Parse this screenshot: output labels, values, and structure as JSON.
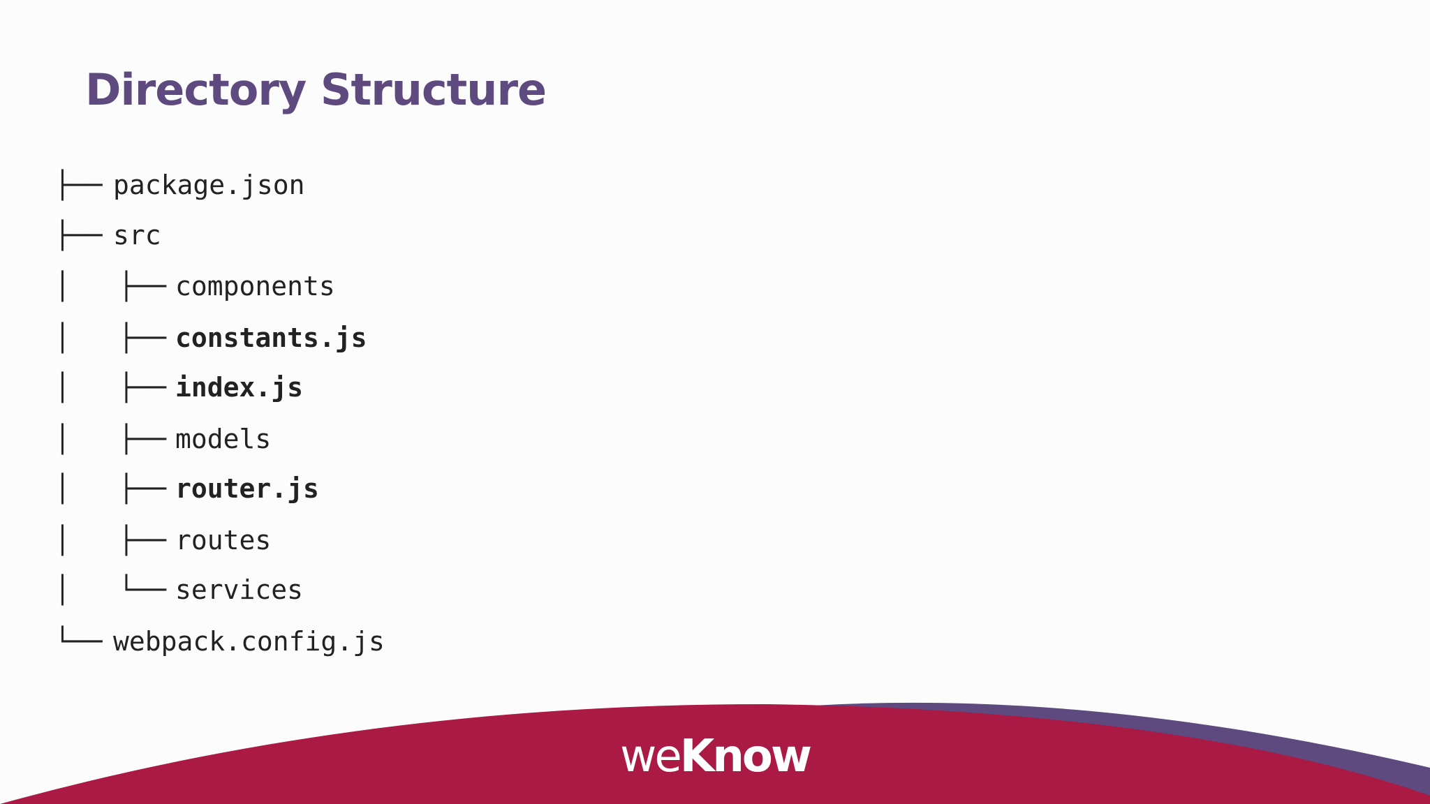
{
  "header": {
    "title": "Directory Structure"
  },
  "tree": [
    {
      "prefix": "├──",
      "name": "package.json",
      "level": 1,
      "bold": false
    },
    {
      "prefix": "├──",
      "name": "src",
      "level": 1,
      "bold": false
    },
    {
      "prefix": "│   ├──",
      "name": "components",
      "level": 2,
      "bold": false
    },
    {
      "prefix": "│   ├──",
      "name": "constants.js",
      "level": 2,
      "bold": true
    },
    {
      "prefix": "│   ├──",
      "name": "index.js",
      "level": 2,
      "bold": true
    },
    {
      "prefix": "│   ├──",
      "name": "models",
      "level": 2,
      "bold": false
    },
    {
      "prefix": "│   ├──",
      "name": "router.js",
      "level": 2,
      "bold": true
    },
    {
      "prefix": "│   ├──",
      "name": "routes",
      "level": 2,
      "bold": false
    },
    {
      "prefix": "│   └──",
      "name": "services",
      "level": 2,
      "bold": false
    },
    {
      "prefix": "└──",
      "name": "webpack.config.js",
      "level": 1,
      "bold": false
    }
  ],
  "footer": {
    "logo_light": "we",
    "logo_bold": "Know"
  }
}
